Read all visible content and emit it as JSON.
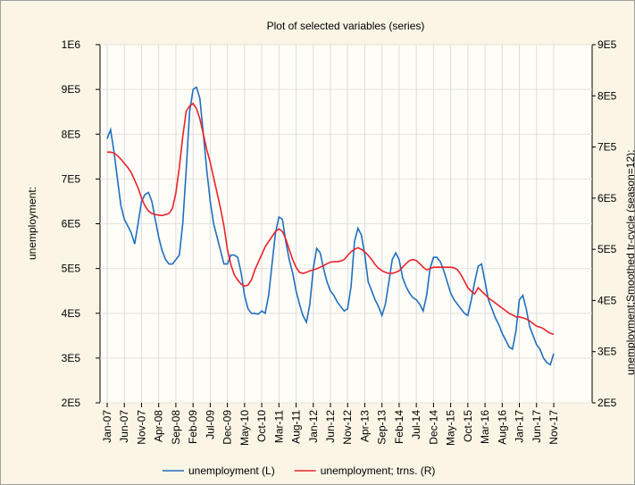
{
  "chart_data": {
    "type": "line",
    "title": "Plot of selected variables (series)",
    "y_label": "unemployment:",
    "y2_label": "unemployment;Smoothed tr-cycle (season=12);",
    "categories": [
      "Jan-07",
      null,
      null,
      null,
      null,
      "Jun-07",
      null,
      null,
      null,
      null,
      "Nov-07",
      null,
      null,
      null,
      null,
      "Apr-08",
      null,
      null,
      null,
      null,
      "Sep-08",
      null,
      null,
      null,
      null,
      "Feb-09",
      null,
      null,
      null,
      null,
      "Jul-09",
      null,
      null,
      null,
      null,
      "Dec-09",
      null,
      null,
      null,
      null,
      "May-10",
      null,
      null,
      null,
      null,
      "Oct-10",
      null,
      null,
      null,
      null,
      "Mar-11",
      null,
      null,
      null,
      null,
      "Aug-11",
      null,
      null,
      null,
      null,
      "Jan-12",
      null,
      null,
      null,
      null,
      "Jun-12",
      null,
      null,
      null,
      null,
      "Nov-12",
      null,
      null,
      null,
      null,
      "Apr-13",
      null,
      null,
      null,
      null,
      "Sep-13",
      null,
      null,
      null,
      null,
      "Feb-14",
      null,
      null,
      null,
      null,
      "Jul-14",
      null,
      null,
      null,
      null,
      "Dec-14",
      null,
      null,
      null,
      null,
      "May-15",
      null,
      null,
      null,
      null,
      "Oct-15",
      null,
      null,
      null,
      null,
      "Mar-16",
      null,
      null,
      null,
      null,
      "Aug-16",
      null,
      null,
      null,
      null,
      "Jan-17",
      null,
      null,
      null,
      null,
      "Jun-17",
      null,
      null,
      null,
      null,
      "Nov-17"
    ],
    "series": [
      {
        "name": "unemployment (L)",
        "color": "#1f6fc0",
        "axis": "y",
        "values": [
          790000,
          810000,
          760000,
          700000,
          640000,
          610000,
          595000,
          580000,
          555000,
          600000,
          650000,
          665000,
          670000,
          650000,
          610000,
          570000,
          540000,
          520000,
          510000,
          510000,
          520000,
          530000,
          600000,
          720000,
          850000,
          900000,
          905000,
          880000,
          800000,
          720000,
          650000,
          600000,
          570000,
          540000,
          510000,
          510000,
          530000,
          530000,
          525000,
          490000,
          440000,
          410000,
          400000,
          400000,
          398000,
          405000,
          400000,
          440000,
          510000,
          580000,
          615000,
          610000,
          560000,
          520000,
          490000,
          450000,
          420000,
          395000,
          380000,
          420000,
          500000,
          545000,
          535000,
          500000,
          470000,
          450000,
          440000,
          425000,
          415000,
          405000,
          410000,
          460000,
          560000,
          590000,
          575000,
          530000,
          470000,
          450000,
          430000,
          415000,
          395000,
          420000,
          470000,
          520000,
          535000,
          520000,
          480000,
          460000,
          445000,
          435000,
          430000,
          420000,
          405000,
          440000,
          500000,
          525000,
          525000,
          515000,
          495000,
          470000,
          445000,
          430000,
          420000,
          410000,
          400000,
          395000,
          430000,
          470000,
          505000,
          510000,
          470000,
          430000,
          410000,
          390000,
          375000,
          355000,
          340000,
          325000,
          320000,
          360000,
          430000,
          440000,
          410000,
          370000,
          350000,
          330000,
          320000,
          300000,
          290000,
          285000,
          310000
        ]
      },
      {
        "name": "unemployment; trns. (R)",
        "color": "#e8242b",
        "axis": "y2",
        "values": [
          690000,
          690000,
          688000,
          683000,
          676000,
          668000,
          660000,
          650000,
          635000,
          620000,
          600000,
          585000,
          575000,
          570000,
          568000,
          567000,
          566000,
          568000,
          570000,
          580000,
          610000,
          660000,
          720000,
          770000,
          780000,
          785000,
          775000,
          755000,
          725000,
          695000,
          670000,
          640000,
          610000,
          580000,
          545000,
          500000,
          470000,
          450000,
          440000,
          432000,
          428000,
          430000,
          440000,
          460000,
          475000,
          490000,
          505000,
          515000,
          525000,
          535000,
          540000,
          535000,
          520000,
          500000,
          480000,
          465000,
          455000,
          453000,
          455000,
          458000,
          460000,
          462000,
          465000,
          468000,
          472000,
          475000,
          476000,
          476000,
          477000,
          480000,
          488000,
          495000,
          500000,
          503000,
          500000,
          495000,
          488000,
          480000,
          470000,
          463000,
          458000,
          455000,
          453000,
          453000,
          455000,
          458000,
          465000,
          472000,
          478000,
          480000,
          478000,
          472000,
          465000,
          460000,
          462000,
          465000,
          465000,
          465000,
          465000,
          465000,
          465000,
          464000,
          460000,
          450000,
          438000,
          425000,
          418000,
          413000,
          425000,
          418000,
          412000,
          405000,
          400000,
          395000,
          390000,
          385000,
          380000,
          375000,
          372000,
          368000,
          368000,
          366000,
          364000,
          360000,
          355000,
          350000,
          348000,
          345000,
          340000,
          336000,
          334000
        ]
      }
    ],
    "ylim": [
      200000,
      1000000
    ],
    "yticks": [
      {
        "value": 200000,
        "label": "2E5"
      },
      {
        "value": 300000,
        "label": "3E5"
      },
      {
        "value": 400000,
        "label": "4E5"
      },
      {
        "value": 500000,
        "label": "5E5"
      },
      {
        "value": 600000,
        "label": "6E5"
      },
      {
        "value": 700000,
        "label": "7E5"
      },
      {
        "value": 800000,
        "label": "8E5"
      },
      {
        "value": 900000,
        "label": "9E5"
      },
      {
        "value": 1000000,
        "label": "1E6"
      }
    ],
    "y2lim": [
      200000,
      900000
    ],
    "y2ticks": [
      {
        "value": 200000,
        "label": "2E5"
      },
      {
        "value": 300000,
        "label": "3E5"
      },
      {
        "value": 400000,
        "label": "4E5"
      },
      {
        "value": 500000,
        "label": "5E5"
      },
      {
        "value": 600000,
        "label": "6E5"
      },
      {
        "value": 700000,
        "label": "7E5"
      },
      {
        "value": 800000,
        "label": "8E5"
      },
      {
        "value": 900000,
        "label": "9E5"
      }
    ],
    "grid": true
  }
}
